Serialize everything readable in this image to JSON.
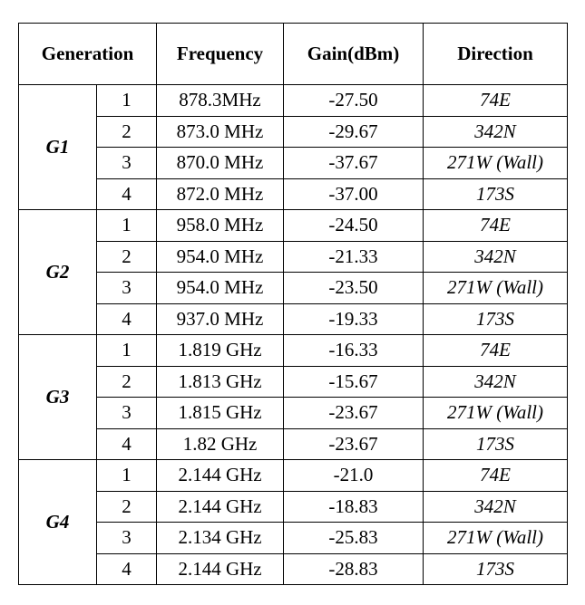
{
  "header": [
    "Generation",
    "Frequency",
    "Gain(dBm)",
    "Direction"
  ],
  "groups": [
    {
      "name": "G1",
      "rows": [
        [
          "1",
          "878.3MHz",
          "-27.50",
          "74E"
        ],
        [
          "2",
          "873.0 MHz",
          "-29.67",
          "342N"
        ],
        [
          "3",
          "870.0 MHz",
          "-37.67",
          "271W (Wall)"
        ],
        [
          "4",
          "872.0 MHz",
          "-37.00",
          "173S"
        ]
      ]
    },
    {
      "name": "G2",
      "rows": [
        [
          "1",
          "958.0 MHz",
          "-24.50",
          "74E"
        ],
        [
          "2",
          "954.0 MHz",
          "-21.33",
          "342N"
        ],
        [
          "3",
          "954.0 MHz",
          "-23.50",
          "271W (Wall)"
        ],
        [
          "4",
          "937.0 MHz",
          "-19.33",
          "173S"
        ]
      ]
    },
    {
      "name": "G3",
      "rows": [
        [
          "1",
          "1.819 GHz",
          "-16.33",
          "74E"
        ],
        [
          "2",
          "1.813 GHz",
          "-15.67",
          "342N"
        ],
        [
          "3",
          "1.815 GHz",
          "-23.67",
          "271W (Wall)"
        ],
        [
          "4",
          "1.82 GHz",
          "-23.67",
          "173S"
        ]
      ]
    },
    {
      "name": "G4",
      "rows": [
        [
          "1",
          "2.144 GHz",
          "-21.0",
          "74E"
        ],
        [
          "2",
          "2.144 GHz",
          "-18.83",
          "342N"
        ],
        [
          "3",
          "2.134 GHz",
          "-25.83",
          "271W (Wall)"
        ],
        [
          "4",
          "2.144 GHz",
          "-28.83",
          "173S"
        ]
      ]
    }
  ]
}
